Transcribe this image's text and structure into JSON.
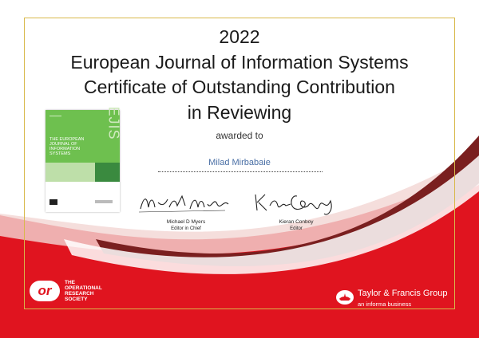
{
  "certificate": {
    "year": "2022",
    "title_lines": [
      "European Journal of Information Systems",
      "Certificate of Outstanding Contribution",
      "in Reviewing"
    ],
    "awarded_to_label": "awarded to",
    "recipient": "Milad Mirbabaie"
  },
  "signatories": [
    {
      "signature": "Michael Myers",
      "name": "Michael D Myers",
      "role": "Editor in Chief"
    },
    {
      "signature": "Kieran Conboy",
      "name": "Kieran Conboy",
      "role": "Editor"
    }
  ],
  "journal_cover": {
    "abbreviation": "EJIS",
    "title_lines": [
      "THE EUROPEAN",
      "JOURNAL OF",
      "INFORMATION",
      "SYSTEMS"
    ]
  },
  "footer": {
    "ors_logo_text": "or",
    "ors_name_lines": [
      "THE",
      "OPERATIONAL",
      "RESEARCH",
      "SOCIETY"
    ],
    "publisher": "Taylor & Francis Group",
    "publisher_sub": "an informa business"
  },
  "colors": {
    "brand_red": "#e0141f",
    "dark_red": "#7a1f1f",
    "gold_frame": "#d8b84a",
    "cover_green": "#6ec04f",
    "recipient_blue": "#4a6fa5"
  }
}
